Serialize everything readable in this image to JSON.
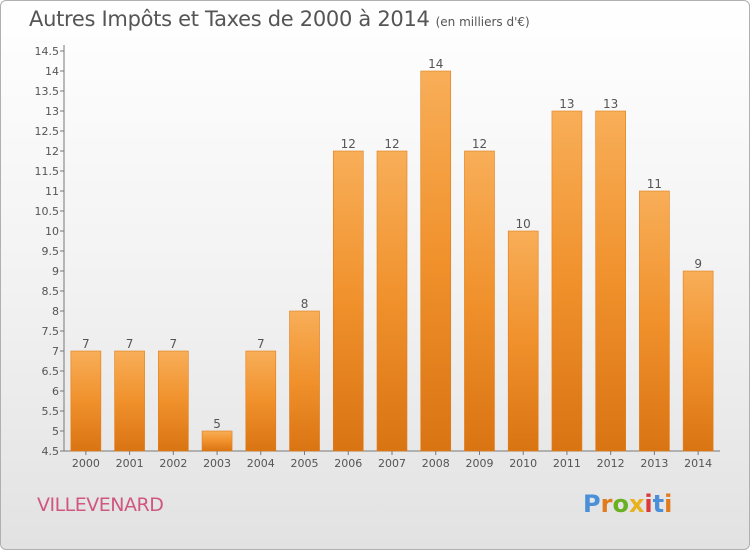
{
  "header": {
    "title": "Autres Impôts et Taxes de 2000 à 2014",
    "unit": "(en milliers d'€)"
  },
  "footer": {
    "commune": "VILLEVENARD",
    "logo_letters": [
      "P",
      "r",
      "o",
      "x",
      "i",
      "t",
      "i"
    ],
    "logo_colors": [
      "#4a8fd8",
      "#e07b1e",
      "#6ab023",
      "#e8b21e",
      "#d93a3a",
      "#4a8fd8",
      "#e07b1e"
    ]
  },
  "chart_data": {
    "type": "bar",
    "title": "Autres Impôts et Taxes de 2000 à 2014",
    "subtitle": "(en milliers d'€)",
    "categories": [
      "2000",
      "2001",
      "2002",
      "2003",
      "2004",
      "2005",
      "2006",
      "2007",
      "2008",
      "2009",
      "2010",
      "2011",
      "2012",
      "2013",
      "2014"
    ],
    "values": [
      7,
      7,
      7,
      5,
      7,
      8,
      12,
      12,
      14,
      12,
      10,
      13,
      13,
      11,
      9
    ],
    "value_labels": [
      "7",
      "7",
      "7",
      "5",
      "7",
      "8",
      "12",
      "12",
      "14",
      "12",
      "10",
      "13",
      "13",
      "11",
      "9"
    ],
    "ylim": [
      4.5,
      14.5
    ],
    "yticks": [
      4.5,
      5,
      5.5,
      6,
      6.5,
      7,
      7.5,
      8,
      8.5,
      9,
      9.5,
      10,
      10.5,
      11,
      11.5,
      12,
      12.5,
      13,
      13.5,
      14,
      14.5
    ],
    "ytick_labels": [
      "4.5",
      "5",
      "5.5",
      "6",
      "6.5",
      "7",
      "7.5",
      "8",
      "8.5",
      "9",
      "9.5",
      "10",
      "10.5",
      "11",
      "11.5",
      "12",
      "12.5",
      "13",
      "13.5",
      "14",
      "14.5"
    ],
    "grid": false,
    "bar_color": "#f0912c",
    "bar_color_light": "#f8ae58",
    "bar_color_dark": "#d97412",
    "xlabel": "",
    "ylabel": ""
  }
}
